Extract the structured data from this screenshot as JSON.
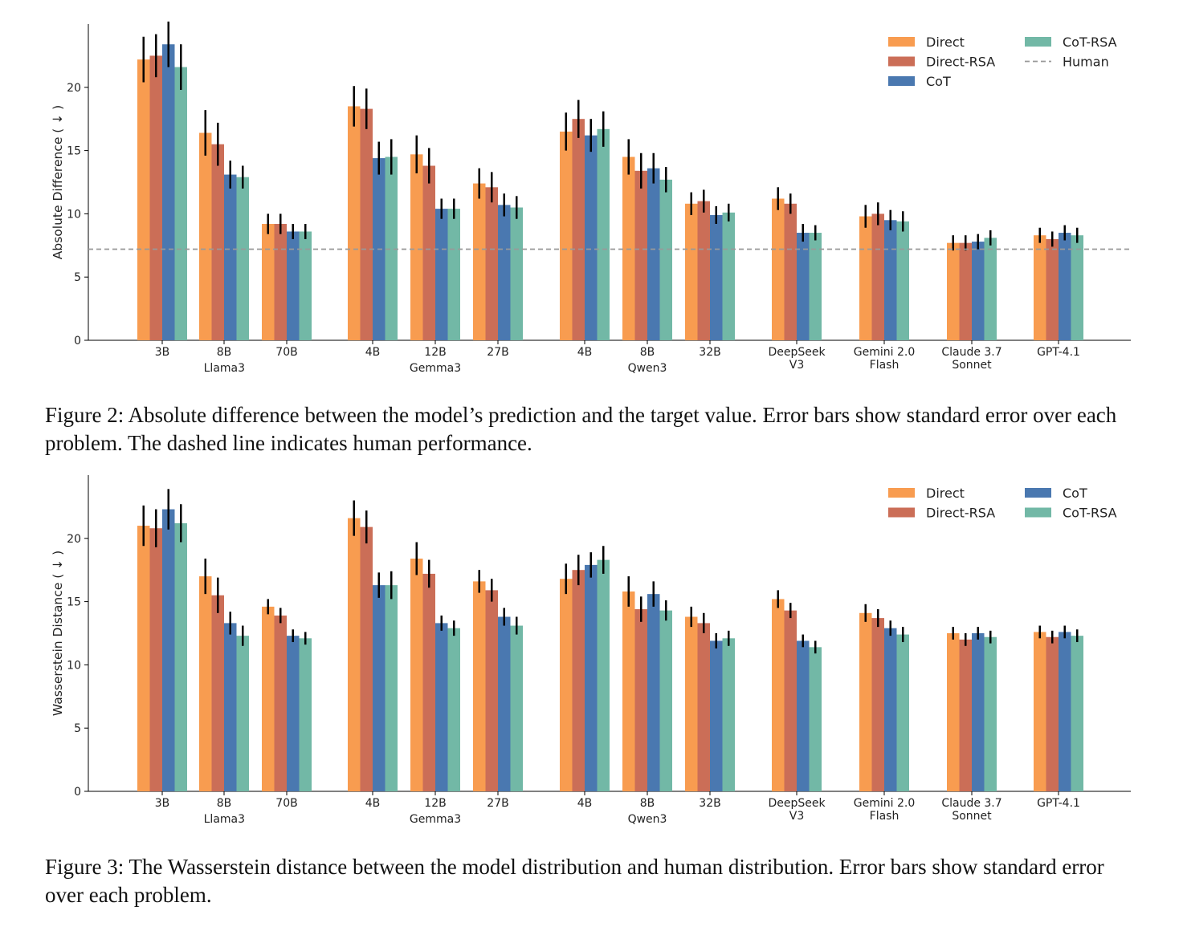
{
  "colors": {
    "Direct": "#f89c50",
    "Direct-RSA": "#cb6e57",
    "CoT": "#4a78b0",
    "CoT-RSA": "#72b8a6",
    "human": "#999999",
    "error": "#000000"
  },
  "figures": [
    {
      "caption": "Figure 2: Absolute difference between the model’s prediction and the target value. Error bars show standard error over each problem. The dashed line indicates human performance.",
      "chart_data": {
        "type": "bar",
        "ylabel": "Absolute Difference ( ↓ )",
        "ylim": [
          0,
          25
        ],
        "yticks": [
          0,
          5,
          10,
          15,
          20
        ],
        "legend_position": "top-right",
        "categories": [
          "3B",
          "8B",
          "70B",
          "4B",
          "12B",
          "27B",
          "4B",
          "8B",
          "32B",
          "DeepSeek\nV3",
          "Gemini 2.0\nFlash",
          "Claude 3.7\nSonnet",
          "GPT-4.1"
        ],
        "groups": [
          {
            "label": "Llama3",
            "members": [
              0,
              1,
              2
            ]
          },
          {
            "label": "Gemma3",
            "members": [
              3,
              4,
              5
            ]
          },
          {
            "label": "Qwen3",
            "members": [
              6,
              7,
              8
            ]
          }
        ],
        "series": [
          {
            "name": "Direct",
            "values": [
              22.2,
              16.4,
              9.2,
              18.5,
              14.7,
              12.4,
              16.5,
              14.5,
              10.8,
              11.2,
              9.8,
              7.7,
              8.3
            ],
            "errors": [
              1.8,
              1.8,
              0.8,
              1.6,
              1.5,
              1.2,
              1.5,
              1.4,
              0.9,
              0.9,
              0.9,
              0.6,
              0.6
            ]
          },
          {
            "name": "Direct-RSA",
            "values": [
              22.5,
              15.5,
              9.2,
              18.3,
              13.8,
              12.1,
              17.5,
              13.4,
              11.0,
              10.8,
              10.0,
              7.7,
              8.0
            ],
            "errors": [
              1.7,
              1.7,
              0.8,
              1.6,
              1.4,
              1.2,
              1.5,
              1.4,
              0.9,
              0.8,
              0.9,
              0.6,
              0.6
            ]
          },
          {
            "name": "CoT",
            "values": [
              23.4,
              13.1,
              8.6,
              14.4,
              10.4,
              10.7,
              16.2,
              13.6,
              9.9,
              8.5,
              9.5,
              7.8,
              8.5
            ],
            "errors": [
              1.8,
              1.1,
              0.6,
              1.3,
              0.8,
              0.9,
              1.3,
              1.2,
              0.7,
              0.7,
              0.8,
              0.6,
              0.6
            ]
          },
          {
            "name": "CoT-RSA",
            "values": [
              21.6,
              12.9,
              8.6,
              14.5,
              10.4,
              10.5,
              16.7,
              12.7,
              10.1,
              8.5,
              9.4,
              8.1,
              8.3
            ],
            "errors": [
              1.8,
              0.9,
              0.6,
              1.4,
              0.8,
              0.9,
              1.4,
              1.0,
              0.7,
              0.6,
              0.8,
              0.6,
              0.6
            ]
          }
        ],
        "reference_line": {
          "name": "Human",
          "value": 7.2,
          "style": "dashed"
        }
      }
    },
    {
      "caption": "Figure 3: The Wasserstein distance between the model distribution and human distribution. Error bars show standard error over each problem.",
      "chart_data": {
        "type": "bar",
        "ylabel": "Wasserstein Distance ( ↓ )",
        "ylim": [
          0,
          25
        ],
        "yticks": [
          0,
          5,
          10,
          15,
          20
        ],
        "legend_position": "top-right",
        "categories": [
          "3B",
          "8B",
          "70B",
          "4B",
          "12B",
          "27B",
          "4B",
          "8B",
          "32B",
          "DeepSeek\nV3",
          "Gemini 2.0\nFlash",
          "Claude 3.7\nSonnet",
          "GPT-4.1"
        ],
        "groups": [
          {
            "label": "Llama3",
            "members": [
              0,
              1,
              2
            ]
          },
          {
            "label": "Gemma3",
            "members": [
              3,
              4,
              5
            ]
          },
          {
            "label": "Qwen3",
            "members": [
              6,
              7,
              8
            ]
          }
        ],
        "series": [
          {
            "name": "Direct",
            "values": [
              21.0,
              17.0,
              14.6,
              21.6,
              18.4,
              16.6,
              16.8,
              15.8,
              13.8,
              15.2,
              14.1,
              12.5,
              12.6
            ],
            "errors": [
              1.6,
              1.4,
              0.6,
              1.4,
              1.3,
              0.9,
              1.2,
              1.2,
              0.8,
              0.7,
              0.7,
              0.5,
              0.5
            ]
          },
          {
            "name": "Direct-RSA",
            "values": [
              20.8,
              15.5,
              13.9,
              20.9,
              17.2,
              15.9,
              17.5,
              14.4,
              13.3,
              14.3,
              13.7,
              12.0,
              12.2
            ],
            "errors": [
              1.5,
              1.4,
              0.6,
              1.3,
              1.1,
              0.9,
              1.2,
              1.0,
              0.8,
              0.6,
              0.7,
              0.5,
              0.5
            ]
          },
          {
            "name": "CoT",
            "values": [
              22.3,
              13.3,
              12.3,
              16.3,
              13.3,
              13.8,
              17.9,
              15.6,
              11.9,
              11.9,
              12.9,
              12.5,
              12.6
            ],
            "errors": [
              1.6,
              0.9,
              0.5,
              1.0,
              0.6,
              0.7,
              1.0,
              1.0,
              0.6,
              0.5,
              0.6,
              0.5,
              0.5
            ]
          },
          {
            "name": "CoT-RSA",
            "values": [
              21.2,
              12.3,
              12.1,
              16.3,
              12.9,
              13.1,
              18.3,
              14.3,
              12.1,
              11.4,
              12.4,
              12.2,
              12.3
            ],
            "errors": [
              1.5,
              0.8,
              0.5,
              1.1,
              0.6,
              0.7,
              1.1,
              0.8,
              0.6,
              0.5,
              0.6,
              0.5,
              0.5
            ]
          }
        ]
      }
    }
  ]
}
